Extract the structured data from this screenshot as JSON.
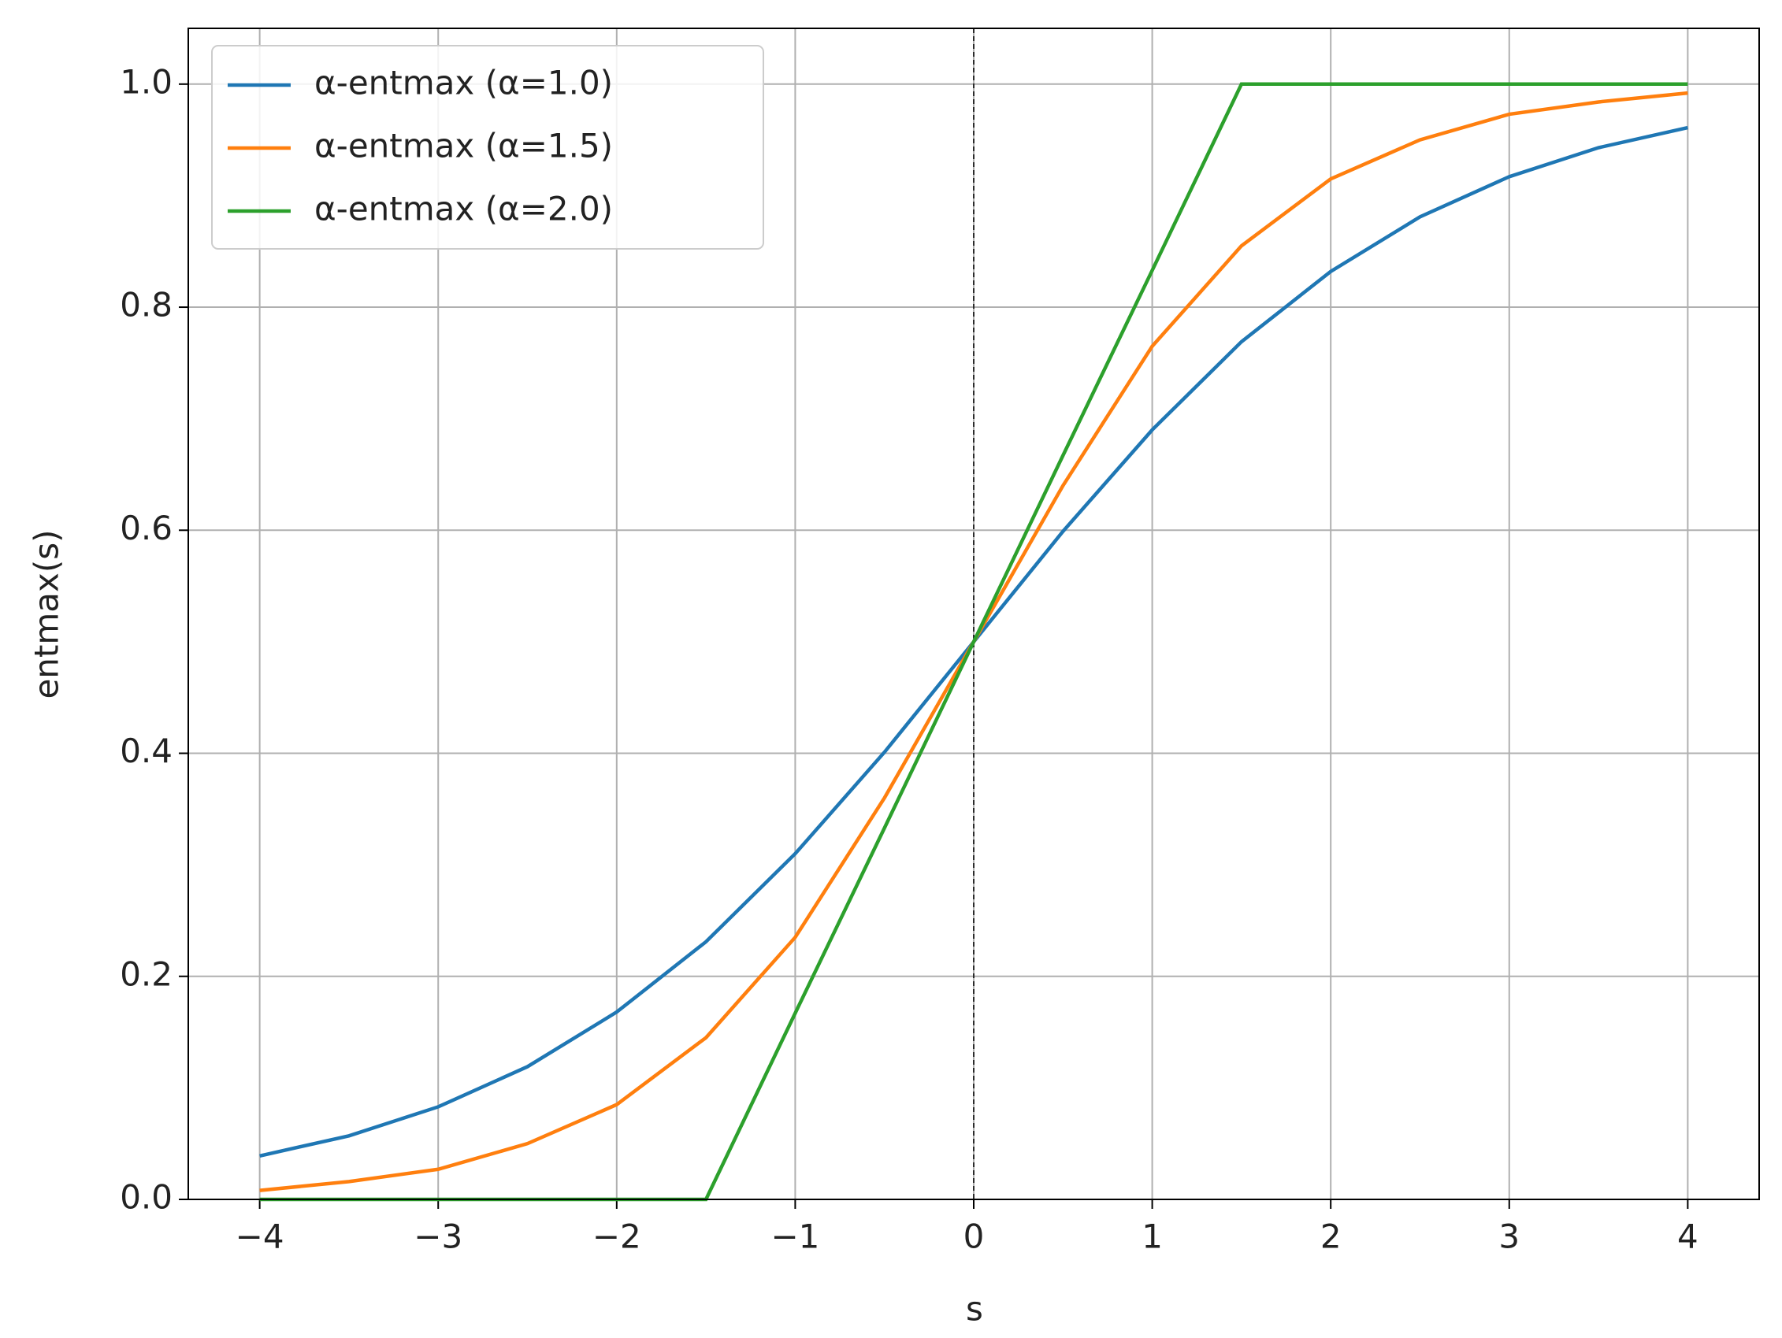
{
  "chart_data": {
    "type": "line",
    "xlabel": "s",
    "ylabel": "entmax(s)",
    "x": [
      -4,
      -3.5,
      -3,
      -2.5,
      -2,
      -1.5,
      -1,
      -0.5,
      0,
      0.5,
      1,
      1.5,
      2,
      2.5,
      3,
      3.5,
      4
    ],
    "series": [
      {
        "name": "α-entmax (α=1.0)",
        "color": "#1f77b4",
        "values": [
          0.039,
          0.057,
          0.083,
          0.119,
          0.168,
          0.231,
          0.31,
          0.401,
          0.5,
          0.599,
          0.69,
          0.769,
          0.832,
          0.881,
          0.917,
          0.943,
          0.961
        ]
      },
      {
        "name": "α-entmax (α=1.5)",
        "color": "#ff7f0e",
        "values": [
          0.008,
          0.016,
          0.027,
          0.05,
          0.085,
          0.145,
          0.235,
          0.36,
          0.5,
          0.64,
          0.765,
          0.855,
          0.915,
          0.95,
          0.973,
          0.984,
          0.992
        ]
      },
      {
        "name": "α-entmax (α=2.0)",
        "color": "#2ca02c",
        "values": [
          0,
          0,
          0,
          0,
          0,
          0,
          0.167,
          0.333,
          0.5,
          0.667,
          0.833,
          1,
          1,
          1,
          1,
          1,
          1
        ]
      }
    ],
    "xlim": [
      -4.4,
      4.4
    ],
    "xticks": [
      {
        "value": -4,
        "label": "−4"
      },
      {
        "value": -3,
        "label": "−3"
      },
      {
        "value": -2,
        "label": "−2"
      },
      {
        "value": -1,
        "label": "−1"
      },
      0,
      1,
      2,
      3,
      4
    ],
    "ylim": [
      0,
      1.05
    ],
    "yticks": [
      {
        "value": 0,
        "label": "0.0"
      },
      0.2,
      0.4,
      0.6,
      0.8,
      {
        "value": 1,
        "label": "1.0"
      }
    ],
    "vline": 0,
    "grid": true,
    "legend": "upper left"
  }
}
